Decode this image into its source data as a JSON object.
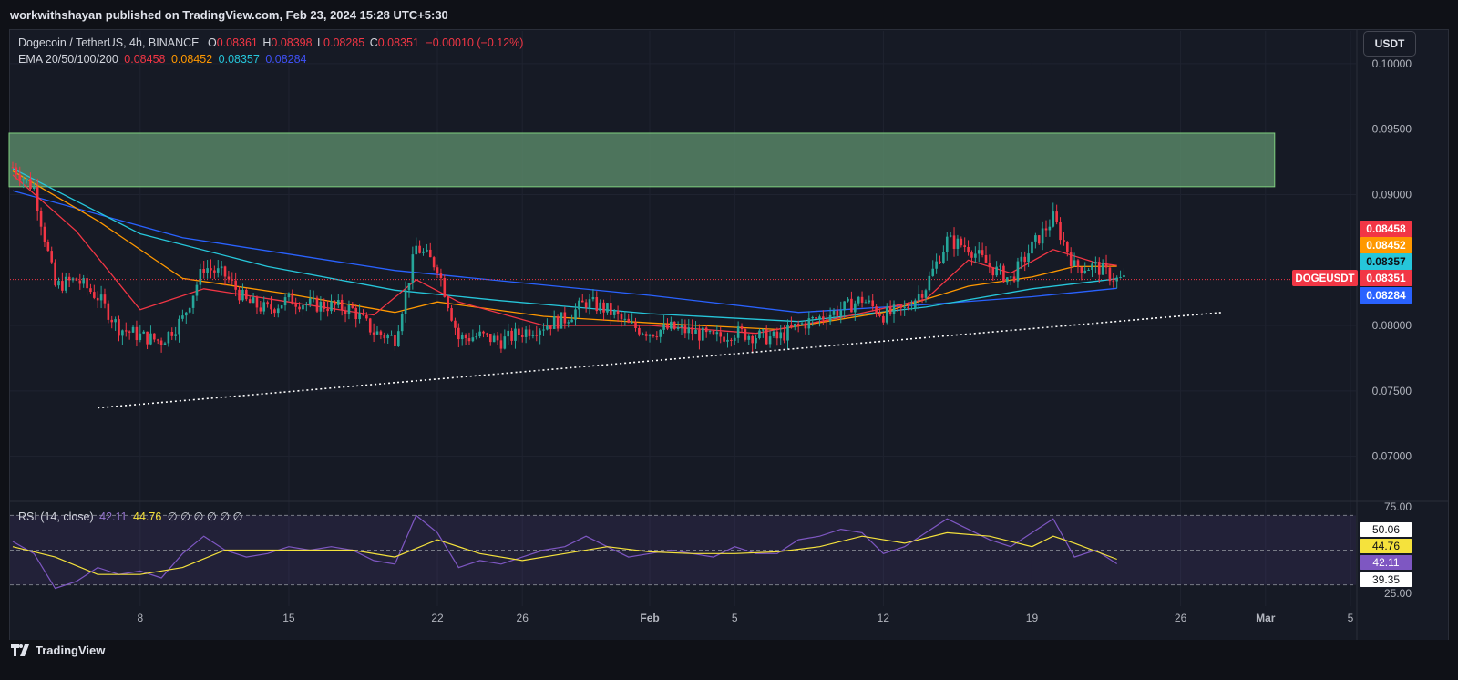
{
  "header": {
    "published": "workwithshayan published on TradingView.com, Feb 23, 2024 15:28 UTC+5:30"
  },
  "legend": {
    "symbol": "Dogecoin / TetherUS, 4h, BINANCE",
    "o_label": "O",
    "o": "0.08361",
    "h_label": "H",
    "h": "0.08398",
    "l_label": "L",
    "l": "0.08285",
    "c_label": "C",
    "c": "0.08351",
    "change": "−0.00010 (−0.12%)",
    "ema_label": "EMA 20/50/100/200",
    "ema20": "0.08458",
    "ema50": "0.08452",
    "ema100": "0.08357",
    "ema200": "0.08284"
  },
  "currency_button": "USDT",
  "rsi_legend": {
    "label": "RSI (14, close)",
    "rsi": "42.11",
    "ma": "44.76",
    "placeholders": "∅ ∅ ∅ ∅ ∅ ∅"
  },
  "footer": {
    "brand": "TradingView"
  },
  "colors": {
    "up": "#26a69a",
    "down": "#f23645",
    "ema20": "#f23645",
    "ema50": "#ff9800",
    "ema100": "#26c6da",
    "ema200": "#2962ff",
    "rsi": "#7e57c2",
    "rsi_ma": "#f5e23c",
    "zone": "#5b8b6a"
  },
  "chart_data": [
    {
      "type": "candlestick",
      "title": "Dogecoin / TetherUS, 4h, BINANCE",
      "ylim": [
        0.0667,
        0.1025
      ],
      "y_ticks": [
        "0.10000",
        "0.09500",
        "0.09000",
        "0.08000",
        "0.07500",
        "0.07000"
      ],
      "x_ticks": [
        "8",
        "15",
        "22",
        "26",
        "Feb",
        "5",
        "12",
        "19",
        "26",
        "Mar",
        "5"
      ],
      "x_tick_dates": [
        "2024-01-08",
        "2024-01-15",
        "2024-01-22",
        "2024-01-26",
        "2024-02-01",
        "2024-02-05",
        "2024-02-12",
        "2024-02-19",
        "2024-02-26",
        "2024-03-01",
        "2024-03-05"
      ],
      "price_labels": [
        {
          "name": "EMA 20",
          "value": "0.08458",
          "color": "#f23645"
        },
        {
          "name": "EMA 50",
          "value": "0.08452",
          "color": "#ff9800"
        },
        {
          "name": "EMA 100",
          "value": "0.08357",
          "color": "#26c6da"
        },
        {
          "name": "DOGEUSDT",
          "value": "0.08351",
          "color": "#f23645"
        },
        {
          "name": "EMA 200",
          "value": "0.08284",
          "color": "#2962ff"
        }
      ],
      "current_price": 0.08351,
      "resistance_zone": {
        "from_date": "2024-01-02",
        "to_date": "2024-03-01",
        "low": 0.0906,
        "high": 0.0947
      },
      "trendline": {
        "start_date": "2024-01-06",
        "start_price": 0.0737,
        "end_date": "2024-02-28",
        "end_price": 0.081
      },
      "close_path": [
        [
          "2024-01-02",
          0.0921
        ],
        [
          "2024-01-03",
          0.0905
        ],
        [
          "2024-01-04",
          0.083
        ],
        [
          "2024-01-05",
          0.0835
        ],
        [
          "2024-01-06",
          0.0822
        ],
        [
          "2024-01-07",
          0.0798
        ],
        [
          "2024-01-08",
          0.0792
        ],
        [
          "2024-01-09",
          0.0788
        ],
        [
          "2024-01-10",
          0.0805
        ],
        [
          "2024-01-11",
          0.0845
        ],
        [
          "2024-01-12",
          0.0838
        ],
        [
          "2024-01-13",
          0.0818
        ],
        [
          "2024-01-14",
          0.0812
        ],
        [
          "2024-01-15",
          0.082
        ],
        [
          "2024-01-16",
          0.0816
        ],
        [
          "2024-01-17",
          0.0815
        ],
        [
          "2024-01-18",
          0.0812
        ],
        [
          "2024-01-19",
          0.0795
        ],
        [
          "2024-01-20",
          0.079
        ],
        [
          "2024-01-21",
          0.086
        ],
        [
          "2024-01-22",
          0.0845
        ],
        [
          "2024-01-23",
          0.079
        ],
        [
          "2024-01-24",
          0.0792
        ],
        [
          "2024-01-25",
          0.0788
        ],
        [
          "2024-01-26",
          0.0795
        ],
        [
          "2024-01-27",
          0.08
        ],
        [
          "2024-01-28",
          0.0805
        ],
        [
          "2024-01-29",
          0.0818
        ],
        [
          "2024-01-30",
          0.0812
        ],
        [
          "2024-01-31",
          0.08
        ],
        [
          "2024-02-01",
          0.0795
        ],
        [
          "2024-02-02",
          0.0798
        ],
        [
          "2024-02-03",
          0.0795
        ],
        [
          "2024-02-04",
          0.079
        ],
        [
          "2024-02-05",
          0.0795
        ],
        [
          "2024-02-06",
          0.0792
        ],
        [
          "2024-02-07",
          0.079
        ],
        [
          "2024-02-08",
          0.08
        ],
        [
          "2024-02-09",
          0.0806
        ],
        [
          "2024-02-10",
          0.0812
        ],
        [
          "2024-02-11",
          0.082
        ],
        [
          "2024-02-12",
          0.0808
        ],
        [
          "2024-02-13",
          0.0812
        ],
        [
          "2024-02-14",
          0.083
        ],
        [
          "2024-02-15",
          0.0865
        ],
        [
          "2024-02-16",
          0.086
        ],
        [
          "2024-02-17",
          0.0845
        ],
        [
          "2024-02-18",
          0.0835
        ],
        [
          "2024-02-19",
          0.086
        ],
        [
          "2024-02-20",
          0.0882
        ],
        [
          "2024-02-21",
          0.0845
        ],
        [
          "2024-02-22",
          0.0845
        ],
        [
          "2024-02-23",
          0.0835
        ]
      ],
      "ema20_path": [
        [
          "2024-01-02",
          0.0915
        ],
        [
          "2024-01-05",
          0.0872
        ],
        [
          "2024-01-08",
          0.0812
        ],
        [
          "2024-01-11",
          0.0828
        ],
        [
          "2024-01-15",
          0.0818
        ],
        [
          "2024-01-19",
          0.0808
        ],
        [
          "2024-01-21",
          0.0835
        ],
        [
          "2024-01-23",
          0.0818
        ],
        [
          "2024-01-27",
          0.08
        ],
        [
          "2024-02-01",
          0.08
        ],
        [
          "2024-02-06",
          0.0794
        ],
        [
          "2024-02-10",
          0.0806
        ],
        [
          "2024-02-14",
          0.082
        ],
        [
          "2024-02-16",
          0.085
        ],
        [
          "2024-02-18",
          0.084
        ],
        [
          "2024-02-20",
          0.0858
        ],
        [
          "2024-02-22",
          0.0848
        ],
        [
          "2024-02-23",
          0.08458
        ]
      ],
      "ema50_path": [
        [
          "2024-01-02",
          0.0918
        ],
        [
          "2024-01-06",
          0.088
        ],
        [
          "2024-01-10",
          0.0836
        ],
        [
          "2024-01-15",
          0.0824
        ],
        [
          "2024-01-20",
          0.081
        ],
        [
          "2024-01-22",
          0.0818
        ],
        [
          "2024-01-27",
          0.0807
        ],
        [
          "2024-02-01",
          0.0802
        ],
        [
          "2024-02-07",
          0.0797
        ],
        [
          "2024-02-12",
          0.081
        ],
        [
          "2024-02-16",
          0.083
        ],
        [
          "2024-02-19",
          0.0837
        ],
        [
          "2024-02-21",
          0.0845
        ],
        [
          "2024-02-23",
          0.08452
        ]
      ],
      "ema100_path": [
        [
          "2024-01-02",
          0.092
        ],
        [
          "2024-01-08",
          0.087
        ],
        [
          "2024-01-14",
          0.0845
        ],
        [
          "2024-01-20",
          0.0827
        ],
        [
          "2024-01-25",
          0.0819
        ],
        [
          "2024-02-01",
          0.0809
        ],
        [
          "2024-02-08",
          0.0803
        ],
        [
          "2024-02-14",
          0.0814
        ],
        [
          "2024-02-19",
          0.0828
        ],
        [
          "2024-02-23",
          0.08357
        ]
      ],
      "ema200_path": [
        [
          "2024-01-02",
          0.0903
        ],
        [
          "2024-01-10",
          0.0867
        ],
        [
          "2024-01-20",
          0.0842
        ],
        [
          "2024-02-01",
          0.0823
        ],
        [
          "2024-02-08",
          0.081
        ],
        [
          "2024-02-14",
          0.0816
        ],
        [
          "2024-02-19",
          0.0822
        ],
        [
          "2024-02-23",
          0.08284
        ]
      ]
    },
    {
      "type": "line",
      "title": "RSI (14, close)",
      "ylim": [
        23,
        77
      ],
      "y_ticks": [
        "75.00",
        "25.00"
      ],
      "bands": {
        "upper": 70,
        "middle": 50,
        "lower": 30
      },
      "value_labels": [
        "50.06",
        "44.76",
        "42.11",
        "39.35"
      ],
      "series": [
        {
          "name": "RSI",
          "color": "#7e57c2",
          "points": [
            [
              "2024-01-02",
              55
            ],
            [
              "2024-01-03",
              48
            ],
            [
              "2024-01-04",
              28
            ],
            [
              "2024-01-05",
              32
            ],
            [
              "2024-01-06",
              40
            ],
            [
              "2024-01-07",
              36
            ],
            [
              "2024-01-08",
              38
            ],
            [
              "2024-01-09",
              34
            ],
            [
              "2024-01-10",
              48
            ],
            [
              "2024-01-11",
              58
            ],
            [
              "2024-01-12",
              50
            ],
            [
              "2024-01-13",
              46
            ],
            [
              "2024-01-14",
              48
            ],
            [
              "2024-01-15",
              52
            ],
            [
              "2024-01-16",
              50
            ],
            [
              "2024-01-17",
              52
            ],
            [
              "2024-01-18",
              50
            ],
            [
              "2024-01-19",
              44
            ],
            [
              "2024-01-20",
              42
            ],
            [
              "2024-01-21",
              70
            ],
            [
              "2024-01-22",
              60
            ],
            [
              "2024-01-23",
              40
            ],
            [
              "2024-01-24",
              44
            ],
            [
              "2024-01-25",
              42
            ],
            [
              "2024-01-26",
              46
            ],
            [
              "2024-01-27",
              50
            ],
            [
              "2024-01-28",
              52
            ],
            [
              "2024-01-29",
              58
            ],
            [
              "2024-01-30",
              52
            ],
            [
              "2024-01-31",
              46
            ],
            [
              "2024-02-01",
              48
            ],
            [
              "2024-02-02",
              50
            ],
            [
              "2024-02-03",
              48
            ],
            [
              "2024-02-04",
              46
            ],
            [
              "2024-02-05",
              52
            ],
            [
              "2024-02-06",
              48
            ],
            [
              "2024-02-07",
              48
            ],
            [
              "2024-02-08",
              56
            ],
            [
              "2024-02-09",
              58
            ],
            [
              "2024-02-10",
              62
            ],
            [
              "2024-02-11",
              60
            ],
            [
              "2024-02-12",
              48
            ],
            [
              "2024-02-13",
              52
            ],
            [
              "2024-02-14",
              60
            ],
            [
              "2024-02-15",
              68
            ],
            [
              "2024-02-16",
              62
            ],
            [
              "2024-02-17",
              56
            ],
            [
              "2024-02-18",
              52
            ],
            [
              "2024-02-19",
              60
            ],
            [
              "2024-02-20",
              68
            ],
            [
              "2024-02-21",
              46
            ],
            [
              "2024-02-22",
              50
            ],
            [
              "2024-02-23",
              42.11
            ]
          ]
        },
        {
          "name": "RSI-based MA",
          "color": "#f5e23c",
          "points": [
            [
              "2024-01-02",
              52
            ],
            [
              "2024-01-04",
              46
            ],
            [
              "2024-01-06",
              36
            ],
            [
              "2024-01-08",
              36
            ],
            [
              "2024-01-10",
              40
            ],
            [
              "2024-01-12",
              50
            ],
            [
              "2024-01-14",
              50
            ],
            [
              "2024-01-16",
              50
            ],
            [
              "2024-01-18",
              50
            ],
            [
              "2024-01-20",
              46
            ],
            [
              "2024-01-22",
              56
            ],
            [
              "2024-01-24",
              48
            ],
            [
              "2024-01-26",
              44
            ],
            [
              "2024-01-28",
              48
            ],
            [
              "2024-01-30",
              52
            ],
            [
              "2024-02-01",
              49
            ],
            [
              "2024-02-03",
              48
            ],
            [
              "2024-02-05",
              48
            ],
            [
              "2024-02-07",
              49
            ],
            [
              "2024-02-09",
              52
            ],
            [
              "2024-02-11",
              58
            ],
            [
              "2024-02-13",
              54
            ],
            [
              "2024-02-15",
              60
            ],
            [
              "2024-02-17",
              58
            ],
            [
              "2024-02-19",
              52
            ],
            [
              "2024-02-20",
              58
            ],
            [
              "2024-02-21",
              54
            ],
            [
              "2024-02-23",
              44.76
            ]
          ]
        }
      ]
    }
  ]
}
